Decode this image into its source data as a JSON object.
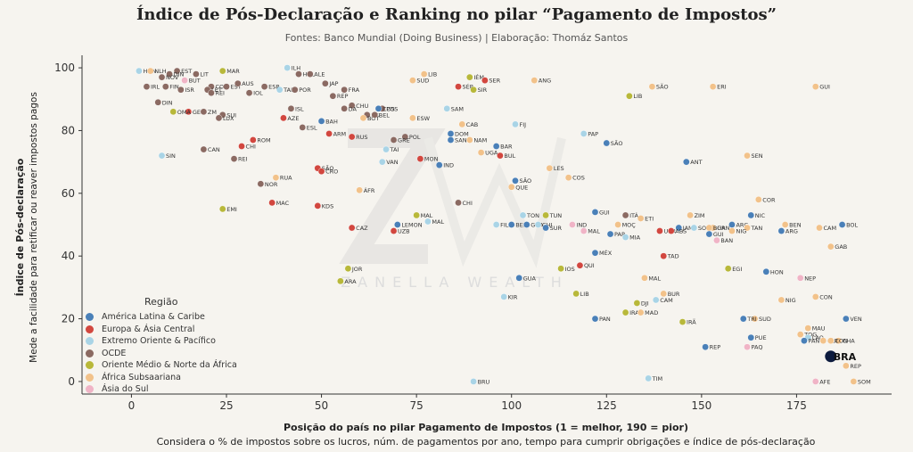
{
  "title": "Índice de Pós-Declaração e Ranking no pilar “Pagamento de Impostos”",
  "subtitle": "Fontes: Banco Mundial (Doing Business) | Elaboração: Thomáz Santos",
  "note": "Considera o % de impostos sobre os lucros, núm. de pagamentos por ano, tempo para cumprir obrigações e índice de pós-declaração",
  "watermark": "ZANELLA WEALTH",
  "colors": {
    "background": "#f6f4ef",
    "America": "#4a80b8",
    "Europa": "#d2473f",
    "Oriente": "#a9d4e6",
    "OCDE": "#8b6a62",
    "Medio": "#b8b83a",
    "Africa": "#f2c28a",
    "Asia": "#f0b4c6",
    "Brasil": "#0d1b3e"
  },
  "chart_data": {
    "type": "scatter",
    "title": "Índice de Pós-Declaração e Ranking no pilar “Pagamento de Impostos”",
    "xlabel": "Posição do país no pilar Pagamento de Impostos (1 = melhor, 190 = pior)",
    "ylabel": "Índice de Pós-declaração",
    "ylabel_secondary": "Mede a facilidade para retificar ou reaver impostos pagos",
    "xlim": [
      -13,
      200
    ],
    "ylim": [
      -4,
      104
    ],
    "xticks": [
      "0",
      "25",
      "50",
      "75",
      "100",
      "125",
      "150",
      "175"
    ],
    "xtick_values": [
      0,
      25,
      50,
      75,
      100,
      125,
      150,
      175
    ],
    "yticks": [
      "0",
      "20",
      "40",
      "60",
      "80",
      "100"
    ],
    "ytick_values": [
      0,
      20,
      40,
      60,
      80,
      100
    ],
    "grid": false,
    "legend": {
      "title": "Região",
      "placement": "bottom-left",
      "entries": [
        {
          "key": "America",
          "label": "América Latina & Caribe"
        },
        {
          "key": "Europa",
          "label": "Europa & Ásia Central"
        },
        {
          "key": "Oriente",
          "label": "Extremo Oriente & Pacífico"
        },
        {
          "key": "OCDE",
          "label": "OCDE"
        },
        {
          "key": "Medio",
          "label": "Oriente Médio & Norte da África"
        },
        {
          "key": "Africa",
          "label": "África Subsaariana"
        },
        {
          "key": "Asia",
          "label": "Ásia do Sul"
        }
      ]
    },
    "highlight": {
      "label": "BRA",
      "x": 184,
      "y": 8
    },
    "points": [
      {
        "l": "HON",
        "x": 2,
        "y": 99,
        "r": "Oriente"
      },
      {
        "l": "NLH",
        "x": 5,
        "y": 99,
        "r": "Africa"
      },
      {
        "l": "EST",
        "x": 12,
        "y": 99,
        "r": "OCDE"
      },
      {
        "l": "DIN",
        "x": 10,
        "y": 98,
        "r": "OCDE"
      },
      {
        "l": "NOV",
        "x": 8,
        "y": 97,
        "r": "OCDE"
      },
      {
        "l": "LIT",
        "x": 17,
        "y": 98,
        "r": "OCDE"
      },
      {
        "l": "BUT",
        "x": 14,
        "y": 96,
        "r": "Asia"
      },
      {
        "l": "MAR",
        "x": 24,
        "y": 99,
        "r": "Medio"
      },
      {
        "l": "IRL",
        "x": 4,
        "y": 94,
        "r": "OCDE"
      },
      {
        "l": "FIN",
        "x": 9,
        "y": 94,
        "r": "OCDE"
      },
      {
        "l": "ISR",
        "x": 13,
        "y": 93,
        "r": "OCDE"
      },
      {
        "l": "COR",
        "x": 21,
        "y": 94,
        "r": "OCDE"
      },
      {
        "l": "LET",
        "x": 20,
        "y": 93,
        "r": "OCDE"
      },
      {
        "l": "EST",
        "x": 25,
        "y": 94,
        "r": "OCDE"
      },
      {
        "l": "AUS",
        "x": 28,
        "y": 95,
        "r": "OCDE"
      },
      {
        "l": "REI",
        "x": 21,
        "y": 92,
        "r": "OCDE"
      },
      {
        "l": "IOL",
        "x": 31,
        "y": 92,
        "r": "OCDE"
      },
      {
        "l": "TAI",
        "x": 39,
        "y": 93,
        "r": "Oriente"
      },
      {
        "l": "ESP",
        "x": 35,
        "y": 94,
        "r": "OCDE"
      },
      {
        "l": "DIN",
        "x": 7,
        "y": 89,
        "r": "OCDE"
      },
      {
        "l": "GEO",
        "x": 15,
        "y": 86,
        "r": "Europa"
      },
      {
        "l": "OMA",
        "x": 11,
        "y": 86,
        "r": "Medio"
      },
      {
        "l": "ZM",
        "x": 19,
        "y": 86,
        "r": "OCDE"
      },
      {
        "l": "SUI",
        "x": 24,
        "y": 85,
        "r": "OCDE"
      },
      {
        "l": "LUX",
        "x": 23,
        "y": 84,
        "r": "OCDE"
      },
      {
        "l": "ILH",
        "x": 41,
        "y": 100,
        "r": "Oriente"
      },
      {
        "l": "HOL",
        "x": 44,
        "y": 98,
        "r": "OCDE"
      },
      {
        "l": "ALE",
        "x": 47,
        "y": 98,
        "r": "OCDE"
      },
      {
        "l": "JAP",
        "x": 51,
        "y": 95,
        "r": "OCDE"
      },
      {
        "l": "POR",
        "x": 43,
        "y": 93,
        "r": "OCDE"
      },
      {
        "l": "FRA",
        "x": 56,
        "y": 93,
        "r": "OCDE"
      },
      {
        "l": "REP",
        "x": 53,
        "y": 91,
        "r": "OCDE"
      },
      {
        "l": "ISL",
        "x": 42,
        "y": 87,
        "r": "OCDE"
      },
      {
        "l": "AZE",
        "x": 40,
        "y": 84,
        "r": "Europa"
      },
      {
        "l": "BAH",
        "x": 50,
        "y": 83,
        "r": "America"
      },
      {
        "l": "ESL",
        "x": 45,
        "y": 81,
        "r": "OCDE"
      },
      {
        "l": "ARM",
        "x": 52,
        "y": 79,
        "r": "Europa"
      },
      {
        "l": "RUS",
        "x": 58,
        "y": 78,
        "r": "Europa"
      },
      {
        "l": "ROM",
        "x": 32,
        "y": 77,
        "r": "Europa"
      },
      {
        "l": "CHI",
        "x": 29,
        "y": 75,
        "r": "Europa"
      },
      {
        "l": "CAN",
        "x": 19,
        "y": 74,
        "r": "OCDE"
      },
      {
        "l": "REI",
        "x": 27,
        "y": 71,
        "r": "OCDE"
      },
      {
        "l": "SIN",
        "x": 8,
        "y": 72,
        "r": "Oriente"
      },
      {
        "l": "CHU",
        "x": 58,
        "y": 88,
        "r": "OCDE"
      },
      {
        "l": "DA",
        "x": 56,
        "y": 87,
        "r": "OCDE"
      },
      {
        "l": "POS",
        "x": 66,
        "y": 87,
        "r": "OCDE"
      },
      {
        "l": "BEL",
        "x": 62,
        "y": 85,
        "r": "OCDE"
      },
      {
        "l": "COS",
        "x": 65,
        "y": 87,
        "r": "America"
      },
      {
        "l": "BOT",
        "x": 61,
        "y": 84,
        "r": "Africa"
      },
      {
        "l": "BEL",
        "x": 64,
        "y": 85,
        "r": "OCDE"
      },
      {
        "l": "ESW",
        "x": 74,
        "y": 84,
        "r": "Africa"
      },
      {
        "l": "SAM",
        "x": 83,
        "y": 87,
        "r": "Oriente"
      },
      {
        "l": "LIB",
        "x": 77,
        "y": 98,
        "r": "Africa"
      },
      {
        "l": "SUD",
        "x": 74,
        "y": 96,
        "r": "Africa"
      },
      {
        "l": "IÉM",
        "x": 89,
        "y": 97,
        "r": "Medio"
      },
      {
        "l": "SER",
        "x": 93,
        "y": 96,
        "r": "Europa"
      },
      {
        "l": "SÉR",
        "x": 86,
        "y": 94,
        "r": "Europa"
      },
      {
        "l": "SIR",
        "x": 90,
        "y": 93,
        "r": "Medio"
      },
      {
        "l": "ANG",
        "x": 106,
        "y": 96,
        "r": "Africa"
      },
      {
        "l": "SÃO",
        "x": 137,
        "y": 94,
        "r": "Africa"
      },
      {
        "l": "LIB",
        "x": 131,
        "y": 91,
        "r": "Medio"
      },
      {
        "l": "ERI",
        "x": 153,
        "y": 94,
        "r": "Africa"
      },
      {
        "l": "GUI",
        "x": 180,
        "y": 94,
        "r": "Africa"
      },
      {
        "l": "POL",
        "x": 72,
        "y": 78,
        "r": "OCDE"
      },
      {
        "l": "GRE",
        "x": 69,
        "y": 77,
        "r": "OCDE"
      },
      {
        "l": "CAB",
        "x": 87,
        "y": 82,
        "r": "Africa"
      },
      {
        "l": "DOM",
        "x": 84,
        "y": 79,
        "r": "America"
      },
      {
        "l": "SAN",
        "x": 84,
        "y": 77,
        "r": "America"
      },
      {
        "l": "NAM",
        "x": 89,
        "y": 77,
        "r": "Africa"
      },
      {
        "l": "FIJ",
        "x": 101,
        "y": 82,
        "r": "Oriente"
      },
      {
        "l": "PAP",
        "x": 119,
        "y": 79,
        "r": "Oriente"
      },
      {
        "l": "SÃO",
        "x": 125,
        "y": 76,
        "r": "America"
      },
      {
        "l": "BAR",
        "x": 96,
        "y": 75,
        "r": "America"
      },
      {
        "l": "UGA",
        "x": 92,
        "y": 73,
        "r": "Africa"
      },
      {
        "l": "BUL",
        "x": 97,
        "y": 72,
        "r": "Europa"
      },
      {
        "l": "TAI",
        "x": 67,
        "y": 74,
        "r": "Oriente"
      },
      {
        "l": "VAN",
        "x": 66,
        "y": 70,
        "r": "Oriente"
      },
      {
        "l": "MON",
        "x": 76,
        "y": 71,
        "r": "Europa"
      },
      {
        "l": "IND",
        "x": 81,
        "y": 69,
        "r": "America"
      },
      {
        "l": "SEN",
        "x": 162,
        "y": 72,
        "r": "Africa"
      },
      {
        "l": "ANT",
        "x": 146,
        "y": 70,
        "r": "America"
      },
      {
        "l": "LES",
        "x": 110,
        "y": 68,
        "r": "Africa"
      },
      {
        "l": "COS",
        "x": 115,
        "y": 65,
        "r": "Africa"
      },
      {
        "l": "SÃO",
        "x": 101,
        "y": 64,
        "r": "America"
      },
      {
        "l": "QUE",
        "x": 100,
        "y": 62,
        "r": "Africa"
      },
      {
        "l": "SÃO",
        "x": 49,
        "y": 68,
        "r": "Europa"
      },
      {
        "l": "CRO",
        "x": 50,
        "y": 67,
        "r": "Europa"
      },
      {
        "l": "RUA",
        "x": 38,
        "y": 65,
        "r": "Africa"
      },
      {
        "l": "NOR",
        "x": 34,
        "y": 63,
        "r": "OCDE"
      },
      {
        "l": "ÁFR",
        "x": 60,
        "y": 61,
        "r": "Africa"
      },
      {
        "l": "MAC",
        "x": 37,
        "y": 57,
        "r": "Europa"
      },
      {
        "l": "KDS",
        "x": 49,
        "y": 56,
        "r": "Europa"
      },
      {
        "l": "EMI",
        "x": 24,
        "y": 55,
        "r": "Medio"
      },
      {
        "l": "CHI",
        "x": 86,
        "y": 57,
        "r": "OCDE"
      },
      {
        "l": "COR",
        "x": 165,
        "y": 58,
        "r": "Africa"
      },
      {
        "l": "GUI",
        "x": 122,
        "y": 54,
        "r": "America"
      },
      {
        "l": "NIC",
        "x": 163,
        "y": 53,
        "r": "America"
      },
      {
        "l": "ITÁ",
        "x": 130,
        "y": 53,
        "r": "OCDE"
      },
      {
        "l": "ETI",
        "x": 134,
        "y": 52,
        "r": "Africa"
      },
      {
        "l": "ZIM",
        "x": 147,
        "y": 53,
        "r": "Africa"
      },
      {
        "l": "MAL",
        "x": 75,
        "y": 53,
        "r": "Medio"
      },
      {
        "l": "MAL",
        "x": 78,
        "y": 51,
        "r": "Oriente"
      },
      {
        "l": "TON",
        "x": 103,
        "y": 53,
        "r": "Oriente"
      },
      {
        "l": "TUN",
        "x": 109,
        "y": 53,
        "r": "Medio"
      },
      {
        "l": "FIL",
        "x": 96,
        "y": 50,
        "r": "Oriente"
      },
      {
        "l": "BEL",
        "x": 100,
        "y": 50,
        "r": "America"
      },
      {
        "l": "GUA",
        "x": 104,
        "y": 50,
        "r": "America"
      },
      {
        "l": "CHI",
        "x": 107,
        "y": 50,
        "r": "Oriente"
      },
      {
        "l": "SUR",
        "x": 109,
        "y": 49,
        "r": "America"
      },
      {
        "l": "IND",
        "x": 116,
        "y": 50,
        "r": "Asia"
      },
      {
        "l": "MAL",
        "x": 119,
        "y": 48,
        "r": "Asia"
      },
      {
        "l": "MOÇ",
        "x": 128,
        "y": 50,
        "r": "Africa"
      },
      {
        "l": "PAR",
        "x": 126,
        "y": 47,
        "r": "America"
      },
      {
        "l": "MIA",
        "x": 130,
        "y": 46,
        "r": "Oriente"
      },
      {
        "l": "CAZ",
        "x": 58,
        "y": 49,
        "r": "Europa"
      },
      {
        "l": "LEMON",
        "x": 70,
        "y": 50,
        "r": "America"
      },
      {
        "l": "UZB",
        "x": 69,
        "y": 48,
        "r": "Europa"
      },
      {
        "l": "JAM",
        "x": 144,
        "y": 49,
        "r": "America"
      },
      {
        "l": "SOL",
        "x": 148,
        "y": 49,
        "r": "Oriente"
      },
      {
        "l": "GAN",
        "x": 153,
        "y": 49,
        "r": "Africa"
      },
      {
        "l": "ARG",
        "x": 158,
        "y": 50,
        "r": "America"
      },
      {
        "l": "BUR",
        "x": 152,
        "y": 49,
        "r": "Africa"
      },
      {
        "l": "TAN",
        "x": 162,
        "y": 49,
        "r": "Africa"
      },
      {
        "l": "BEN",
        "x": 172,
        "y": 50,
        "r": "Africa"
      },
      {
        "l": "BOL",
        "x": 187,
        "y": 50,
        "r": "America"
      },
      {
        "l": "CAM",
        "x": 181,
        "y": 49,
        "r": "Africa"
      },
      {
        "l": "NIG",
        "x": 158,
        "y": 48,
        "r": "Africa"
      },
      {
        "l": "ARG",
        "x": 171,
        "y": 48,
        "r": "America"
      },
      {
        "l": "UKR",
        "x": 139,
        "y": 48,
        "r": "Europa"
      },
      {
        "l": "ABS",
        "x": 142,
        "y": 48,
        "r": "Europa"
      },
      {
        "l": "GUI",
        "x": 152,
        "y": 47,
        "r": "America"
      },
      {
        "l": "BAN",
        "x": 154,
        "y": 45,
        "r": "Asia"
      },
      {
        "l": "GAB",
        "x": 184,
        "y": 43,
        "r": "Africa"
      },
      {
        "l": "MÉX",
        "x": 122,
        "y": 41,
        "r": "America"
      },
      {
        "l": "TAD",
        "x": 140,
        "y": 40,
        "r": "Europa"
      },
      {
        "l": "QUI",
        "x": 118,
        "y": 37,
        "r": "Europa"
      },
      {
        "l": "EGI",
        "x": 157,
        "y": 36,
        "r": "Medio"
      },
      {
        "l": "HON",
        "x": 167,
        "y": 35,
        "r": "America"
      },
      {
        "l": "NEP",
        "x": 176,
        "y": 33,
        "r": "Asia"
      },
      {
        "l": "JOR",
        "x": 57,
        "y": 36,
        "r": "Medio"
      },
      {
        "l": "ARA",
        "x": 55,
        "y": 32,
        "r": "Medio"
      },
      {
        "l": "IOS",
        "x": 113,
        "y": 36,
        "r": "Medio"
      },
      {
        "l": "GUA",
        "x": 102,
        "y": 33,
        "r": "America"
      },
      {
        "l": "MAL",
        "x": 135,
        "y": 33,
        "r": "Africa"
      },
      {
        "l": "LIB",
        "x": 117,
        "y": 28,
        "r": "Medio"
      },
      {
        "l": "KIR",
        "x": 98,
        "y": 27,
        "r": "Oriente"
      },
      {
        "l": "BUR",
        "x": 140,
        "y": 28,
        "r": "Africa"
      },
      {
        "l": "CAM",
        "x": 138,
        "y": 26,
        "r": "Oriente"
      },
      {
        "l": "DJI",
        "x": 133,
        "y": 25,
        "r": "Medio"
      },
      {
        "l": "NIG",
        "x": 171,
        "y": 26,
        "r": "Africa"
      },
      {
        "l": "CON",
        "x": 180,
        "y": 27,
        "r": "Africa"
      },
      {
        "l": "IRA",
        "x": 130,
        "y": 22,
        "r": "Medio"
      },
      {
        "l": "MAD",
        "x": 134,
        "y": 22,
        "r": "Africa"
      },
      {
        "l": "PAN",
        "x": 122,
        "y": 20,
        "r": "America"
      },
      {
        "l": "SUD",
        "x": 164,
        "y": 20,
        "r": "Africa"
      },
      {
        "l": "TRI",
        "x": 161,
        "y": 20,
        "r": "America"
      },
      {
        "l": "IRÃ",
        "x": 145,
        "y": 19,
        "r": "Medio"
      },
      {
        "l": "VEN",
        "x": 188,
        "y": 20,
        "r": "America"
      },
      {
        "l": "MAU",
        "x": 178,
        "y": 17,
        "r": "Africa"
      },
      {
        "l": "TOG",
        "x": 176,
        "y": 15,
        "r": "Africa"
      },
      {
        "l": "PUE",
        "x": 163,
        "y": 14,
        "r": "America"
      },
      {
        "l": "LAO",
        "x": 178,
        "y": 14,
        "r": "Oriente"
      },
      {
        "l": "CHA",
        "x": 186,
        "y": 13,
        "r": "Africa"
      },
      {
        "l": "PAN",
        "x": 177,
        "y": 13,
        "r": "America"
      },
      {
        "l": "GUI",
        "x": 182,
        "y": 13,
        "r": "Africa"
      },
      {
        "l": "CON",
        "x": 184,
        "y": 13,
        "r": "Africa"
      },
      {
        "l": "REP",
        "x": 151,
        "y": 11,
        "r": "America"
      },
      {
        "l": "PAQ",
        "x": 162,
        "y": 11,
        "r": "Asia"
      },
      {
        "l": "REP",
        "x": 188,
        "y": 5,
        "r": "Africa"
      },
      {
        "l": "AFE",
        "x": 180,
        "y": 0,
        "r": "Asia"
      },
      {
        "l": "SOM",
        "x": 190,
        "y": 0,
        "r": "Africa"
      },
      {
        "l": "BRU",
        "x": 90,
        "y": 0,
        "r": "Oriente"
      },
      {
        "l": "TIM",
        "x": 136,
        "y": 1,
        "r": "Oriente"
      }
    ]
  }
}
